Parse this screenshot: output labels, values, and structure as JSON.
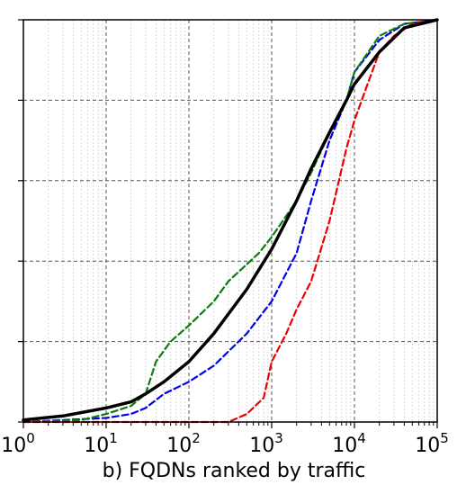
{
  "chart_data": {
    "type": "line",
    "xscale": "log",
    "xlim": [
      1,
      100000
    ],
    "ylim": [
      0,
      1
    ],
    "x_ticks": [
      {
        "base": "10",
        "exp": "0"
      },
      {
        "base": "10",
        "exp": "1"
      },
      {
        "base": "10",
        "exp": "2"
      },
      {
        "base": "10",
        "exp": "3"
      },
      {
        "base": "10",
        "exp": "4"
      },
      {
        "base": "10",
        "exp": "5"
      }
    ],
    "xlabel": "b) FQDNs ranked by traffic",
    "grid": true,
    "series": [
      {
        "color": "#000000",
        "style": "solid",
        "points": [
          [
            1,
            0.005
          ],
          [
            3,
            0.015
          ],
          [
            10,
            0.035
          ],
          [
            20,
            0.05
          ],
          [
            30,
            0.07
          ],
          [
            50,
            0.1
          ],
          [
            100,
            0.15
          ],
          [
            200,
            0.22
          ],
          [
            500,
            0.33
          ],
          [
            1000,
            0.43
          ],
          [
            2000,
            0.55
          ],
          [
            3000,
            0.63
          ],
          [
            5000,
            0.72
          ],
          [
            8000,
            0.8
          ],
          [
            10000,
            0.84
          ],
          [
            20000,
            0.92
          ],
          [
            40000,
            0.98
          ],
          [
            100000,
            1.0
          ]
        ]
      },
      {
        "color": "#0000ee",
        "style": "dashed",
        "points": [
          [
            1,
            0.0
          ],
          [
            3,
            0.005
          ],
          [
            10,
            0.01
          ],
          [
            20,
            0.02
          ],
          [
            30,
            0.035
          ],
          [
            50,
            0.07
          ],
          [
            100,
            0.1
          ],
          [
            200,
            0.14
          ],
          [
            500,
            0.22
          ],
          [
            1000,
            0.3
          ],
          [
            2000,
            0.42
          ],
          [
            3000,
            0.55
          ],
          [
            5000,
            0.7
          ],
          [
            8000,
            0.8
          ],
          [
            10000,
            0.87
          ],
          [
            20000,
            0.95
          ],
          [
            40000,
            0.99
          ],
          [
            100000,
            1.0
          ]
        ]
      },
      {
        "color": "#0a7d0a",
        "style": "dashed",
        "points": [
          [
            1,
            0.0
          ],
          [
            5,
            0.005
          ],
          [
            10,
            0.02
          ],
          [
            20,
            0.04
          ],
          [
            30,
            0.07
          ],
          [
            40,
            0.15
          ],
          [
            60,
            0.2
          ],
          [
            100,
            0.24
          ],
          [
            200,
            0.3
          ],
          [
            300,
            0.35
          ],
          [
            700,
            0.42
          ],
          [
            1000,
            0.46
          ],
          [
            2000,
            0.55
          ],
          [
            3000,
            0.62
          ],
          [
            5000,
            0.72
          ],
          [
            8000,
            0.8
          ],
          [
            10000,
            0.87
          ],
          [
            20000,
            0.96
          ],
          [
            40000,
            0.99
          ],
          [
            100000,
            1.0
          ]
        ]
      },
      {
        "color": "#ee0000",
        "style": "dashed",
        "points": [
          [
            1,
            0.0
          ],
          [
            300,
            0.0
          ],
          [
            500,
            0.02
          ],
          [
            800,
            0.06
          ],
          [
            1000,
            0.15
          ],
          [
            1500,
            0.22
          ],
          [
            2000,
            0.28
          ],
          [
            3000,
            0.35
          ],
          [
            5000,
            0.5
          ],
          [
            8000,
            0.68
          ],
          [
            10000,
            0.75
          ],
          [
            15000,
            0.85
          ],
          [
            20000,
            0.92
          ],
          [
            30000,
            0.96
          ],
          [
            50000,
            0.99
          ],
          [
            100000,
            1.0
          ]
        ]
      }
    ]
  }
}
